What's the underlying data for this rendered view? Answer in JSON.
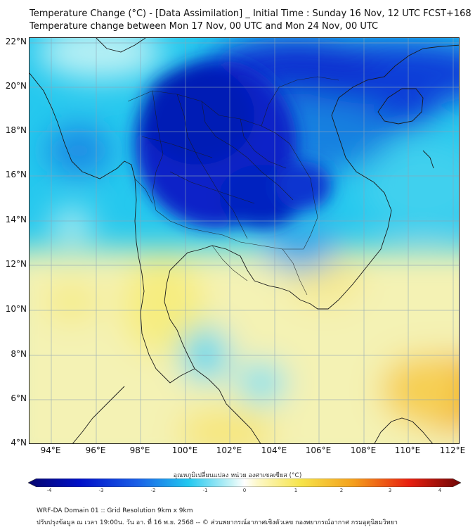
{
  "title_line1": "Temperature Change (°C) - [Data Assimilation] _ Initial Time : Sunday 16 Nov, 12 UTC FCST+168",
  "title_line2": "Temperature change between Mon 17 Nov, 00 UTC and Mon 24 Nov, 00 UTC",
  "lat_ticks": [
    "22°N",
    "20°N",
    "18°N",
    "16°N",
    "14°N",
    "12°N",
    "10°N",
    "8°N",
    "6°N",
    "4°N"
  ],
  "lon_ticks": [
    "94°E",
    "96°E",
    "98°E",
    "100°E",
    "102°E",
    "104°E",
    "106°E",
    "108°E",
    "110°E",
    "112°E"
  ],
  "colorbar": {
    "label": "อุณหภูมิเปลี่ยนแปลง หน่วย องศาเซลเซียส (°C)",
    "ticks": [
      "-4",
      "-3",
      "-2",
      "-1",
      "0",
      "1",
      "2",
      "3",
      "4"
    ],
    "min": -4,
    "max": 4
  },
  "footer_line1": "WRF-DA Domain 01 :: Grid Resolution 9km x 9km",
  "footer_line2": "ปรับปรุงข้อมูล ณ เวลา 19:00น. วัน อา. ที่ 16 พ.ย. 2568 -- © ส่วนพยากรณ์อากาศเชิงตัวเลข กองพยากรณ์อากาศ กรมอุตุนิยมวิทยา"
}
